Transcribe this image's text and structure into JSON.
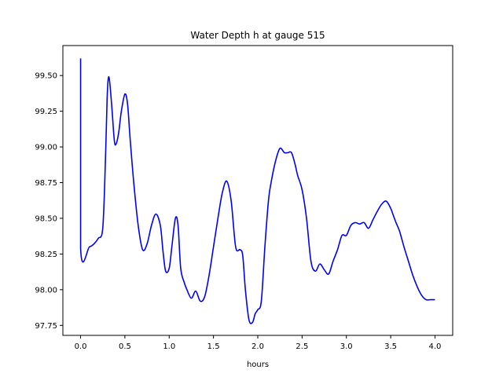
{
  "chart_data": {
    "type": "line",
    "title": "Water Depth h at gauge 515",
    "xlabel": "hours",
    "ylabel": "",
    "xlim": [
      -0.2,
      4.2
    ],
    "ylim": [
      97.68,
      99.71
    ],
    "xticks": [
      {
        "value": 0.0,
        "label": "0.0"
      },
      {
        "value": 0.5,
        "label": "0.5"
      },
      {
        "value": 1.0,
        "label": "1.0"
      },
      {
        "value": 1.5,
        "label": "1.5"
      },
      {
        "value": 2.0,
        "label": "2.0"
      },
      {
        "value": 2.5,
        "label": "2.5"
      },
      {
        "value": 3.0,
        "label": "3.0"
      },
      {
        "value": 3.5,
        "label": "3.5"
      },
      {
        "value": 4.0,
        "label": "4.0"
      }
    ],
    "yticks": [
      {
        "value": 97.75,
        "label": "97.75"
      },
      {
        "value": 98.0,
        "label": "98.00"
      },
      {
        "value": 98.25,
        "label": "98.25"
      },
      {
        "value": 98.5,
        "label": "98.50"
      },
      {
        "value": 98.75,
        "label": "98.75"
      },
      {
        "value": 99.0,
        "label": "99.00"
      },
      {
        "value": 99.25,
        "label": "99.25"
      },
      {
        "value": 99.5,
        "label": "99.50"
      }
    ],
    "grid": false,
    "series": [
      {
        "color": "#0000ff",
        "x": [
          0.0,
          0.0,
          0.1,
          0.15,
          0.2,
          0.25,
          0.28,
          0.3,
          0.32,
          0.35,
          0.38,
          0.4,
          0.43,
          0.46,
          0.5,
          0.53,
          0.56,
          0.6,
          0.65,
          0.7,
          0.75,
          0.8,
          0.85,
          0.9,
          0.93,
          0.96,
          1.0,
          1.03,
          1.07,
          1.1,
          1.13,
          1.17,
          1.2,
          1.25,
          1.3,
          1.35,
          1.4,
          1.45,
          1.5,
          1.55,
          1.6,
          1.65,
          1.7,
          1.75,
          1.8,
          1.83,
          1.86,
          1.9,
          1.94,
          1.97,
          2.0,
          2.04,
          2.08,
          2.12,
          2.15,
          2.2,
          2.25,
          2.3,
          2.34,
          2.38,
          2.42,
          2.45,
          2.5,
          2.55,
          2.6,
          2.65,
          2.7,
          2.75,
          2.8,
          2.85,
          2.9,
          2.95,
          3.0,
          3.05,
          3.1,
          3.15,
          3.2,
          3.25,
          3.3,
          3.35,
          3.4,
          3.45,
          3.5,
          3.53,
          3.56,
          3.6,
          3.65,
          3.7,
          3.75,
          3.8,
          3.85,
          3.9,
          3.95,
          4.0
        ],
        "y": [
          99.62,
          98.29,
          98.3,
          98.32,
          98.36,
          98.43,
          98.9,
          99.35,
          99.49,
          99.3,
          99.05,
          99.02,
          99.1,
          99.25,
          99.37,
          99.3,
          99.05,
          98.75,
          98.45,
          98.28,
          98.32,
          98.45,
          98.53,
          98.45,
          98.27,
          98.13,
          98.15,
          98.3,
          98.5,
          98.45,
          98.15,
          98.05,
          98.0,
          97.94,
          97.99,
          97.92,
          97.95,
          98.1,
          98.3,
          98.5,
          98.68,
          98.76,
          98.62,
          98.3,
          98.28,
          98.24,
          98.0,
          97.79,
          97.77,
          97.83,
          97.86,
          97.92,
          98.3,
          98.62,
          98.75,
          98.9,
          98.99,
          98.96,
          98.96,
          98.96,
          98.88,
          98.8,
          98.7,
          98.5,
          98.2,
          98.13,
          98.18,
          98.14,
          98.11,
          98.2,
          98.28,
          98.38,
          98.38,
          98.45,
          98.47,
          98.46,
          98.47,
          98.43,
          98.49,
          98.55,
          98.6,
          98.62,
          98.57,
          98.52,
          98.47,
          98.41,
          98.3,
          98.2,
          98.1,
          98.02,
          97.96,
          97.93,
          97.93,
          97.93
        ]
      }
    ]
  }
}
